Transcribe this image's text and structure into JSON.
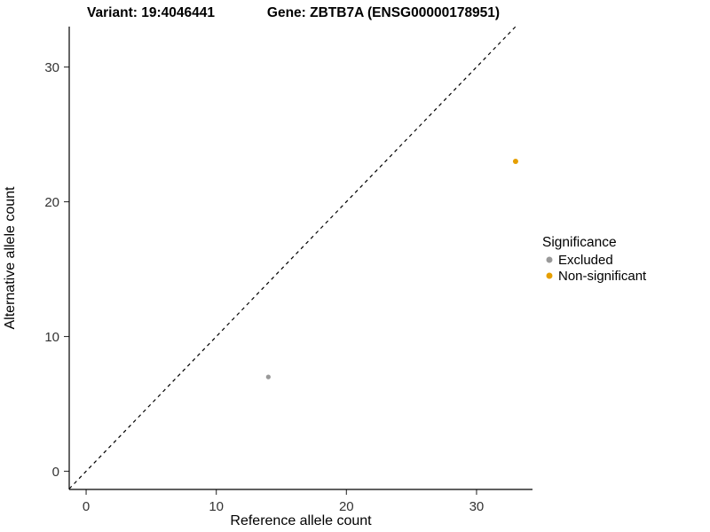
{
  "titles": {
    "variant": "Variant: 19:4046441",
    "gene": "Gene: ZBTB7A (ENSG00000178951)"
  },
  "chart_data": {
    "type": "scatter",
    "xlabel": "Reference allele count",
    "ylabel": "Alternative allele count",
    "xlim": [
      -1.3,
      34.3
    ],
    "ylim": [
      -1.35,
      33
    ],
    "xticks": [
      0,
      10,
      20,
      30
    ],
    "yticks": [
      0,
      10,
      20,
      30
    ],
    "grid": false,
    "identity_line": {
      "style": "dashed",
      "equation": "y = x"
    },
    "legend": {
      "title": "Significance",
      "position": "right",
      "items": [
        {
          "label": "Excluded",
          "color": "#999999"
        },
        {
          "label": "Non-significant",
          "color": "#E69F00"
        }
      ]
    },
    "series": [
      {
        "name": "Excluded",
        "color": "#999999",
        "radius": 2.6,
        "points": [
          {
            "x": 14,
            "y": 7
          }
        ]
      },
      {
        "name": "Non-significant",
        "color": "#E69F00",
        "radius": 3.0,
        "points": [
          {
            "x": 33,
            "y": 23
          }
        ]
      }
    ]
  }
}
